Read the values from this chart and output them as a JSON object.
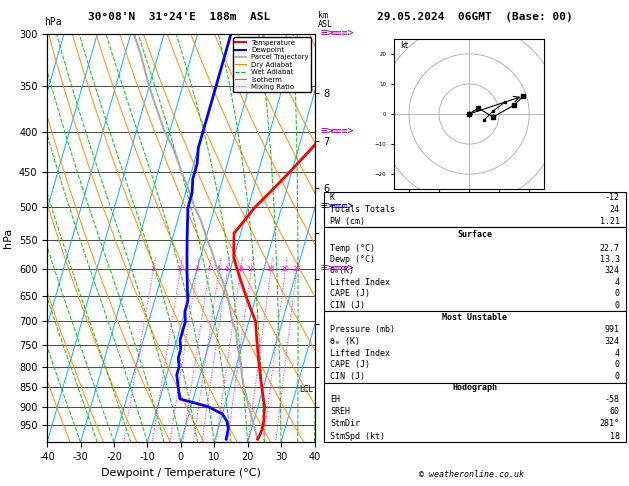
{
  "title_left": "30°08'N  31°24'E  188m  ASL",
  "title_right": "29.05.2024  06GMT  (Base: 00)",
  "xlabel": "Dewpoint / Temperature (°C)",
  "ylabel_left": "hPa",
  "pressure_ticks": [
    300,
    350,
    400,
    450,
    500,
    550,
    600,
    650,
    700,
    750,
    800,
    850,
    900,
    950
  ],
  "T_min": -40,
  "T_max": 40,
  "P_min": 300,
  "P_max": 1000,
  "skew_factor": 35,
  "temperature_profile": {
    "pressures": [
      991,
      980,
      960,
      940,
      920,
      900,
      880,
      860,
      840,
      820,
      800,
      780,
      760,
      740,
      720,
      700,
      680,
      660,
      640,
      620,
      600,
      580,
      560,
      540,
      520,
      500,
      480,
      460,
      440,
      420,
      400,
      380,
      360,
      340,
      320,
      300
    ],
    "temps": [
      22.7,
      23.0,
      23.2,
      23.0,
      22.5,
      22.0,
      21.0,
      20.0,
      19.0,
      18.0,
      17.0,
      16.0,
      15.0,
      14.0,
      13.0,
      12.0,
      10.0,
      8.0,
      6.0,
      4.0,
      2.0,
      0.0,
      -1.0,
      -2.0,
      0.0,
      2.0,
      5.0,
      8.0,
      11.0,
      14.0,
      17.0,
      21.0,
      24.0,
      27.0,
      29.0,
      30.0
    ],
    "color": "#ff0000",
    "linewidth": 2.0
  },
  "dewpoint_profile": {
    "pressures": [
      991,
      980,
      960,
      940,
      920,
      900,
      880,
      860,
      840,
      820,
      800,
      780,
      760,
      740,
      720,
      700,
      680,
      660,
      640,
      620,
      600,
      580,
      560,
      540,
      520,
      500,
      480,
      460,
      440,
      420,
      400,
      380,
      360,
      340,
      320,
      300
    ],
    "temps": [
      13.3,
      13.2,
      13.0,
      12.0,
      10.0,
      5.0,
      -4.0,
      -5.0,
      -6.0,
      -7.0,
      -7.0,
      -8.0,
      -8.0,
      -9.0,
      -9.0,
      -9.0,
      -10.0,
      -10.0,
      -11.0,
      -12.0,
      -13.0,
      -14.0,
      -15.0,
      -16.0,
      -17.0,
      -18.0,
      -18.0,
      -19.0,
      -19.0,
      -20.0,
      -20.0,
      -20.0,
      -20.0,
      -20.0,
      -20.0,
      -20.0
    ],
    "color": "#0000ff",
    "linewidth": 2.0
  },
  "parcel_trajectory": {
    "pressures": [
      991,
      970,
      950,
      920,
      900,
      870,
      855,
      830,
      800,
      770,
      750,
      720,
      700,
      670,
      650,
      620,
      600,
      570,
      550,
      520,
      500,
      470,
      450,
      420,
      400,
      370,
      350,
      320,
      300
    ],
    "temps": [
      22.7,
      21.5,
      20.3,
      18.5,
      17.2,
      15.5,
      14.5,
      13.0,
      11.5,
      9.8,
      8.5,
      7.0,
      5.0,
      3.0,
      1.5,
      -1.5,
      -4.0,
      -7.0,
      -9.5,
      -13.0,
      -16.0,
      -20.0,
      -23.0,
      -27.5,
      -31.5,
      -36.5,
      -40.0,
      -45.0,
      -49.0
    ],
    "color": "#aaaaaa",
    "linewidth": 1.5
  },
  "isotherms_step": 10,
  "iso_color": "#00aaff",
  "iso_lw": 0.8,
  "dry_adiabat_color": "#ff8800",
  "dry_adiabat_lw": 0.8,
  "dry_adiabat_thetas": [
    240,
    250,
    260,
    270,
    280,
    290,
    300,
    310,
    320,
    330,
    340,
    350,
    360,
    370,
    380,
    390,
    400,
    410,
    420
  ],
  "wet_adiabat_color": "#00bb00",
  "wet_adiabat_lw": 0.8,
  "wet_adiabat_ls": "--",
  "wet_adiabat_starts": [
    -30,
    -25,
    -20,
    -15,
    -10,
    -5,
    0,
    5,
    10,
    15,
    20,
    25,
    30,
    35,
    40
  ],
  "mr_color": "#ff00ff",
  "mr_lw": 0.7,
  "mr_ls": ":",
  "mr_values": [
    1,
    2,
    3,
    4,
    5,
    6,
    8,
    10,
    15,
    20,
    25
  ],
  "km_values": [
    1,
    2,
    3,
    4,
    5,
    6,
    7,
    8
  ],
  "km_pressures": [
    900,
    802,
    705,
    617,
    540,
    472,
    411,
    357
  ],
  "lcl_pressure": 855,
  "wind_barb_pressures": [
    300,
    400,
    500,
    600
  ],
  "wind_barb_colors": [
    "#aa00aa",
    "#aa00aa",
    "#0000aa",
    "#aa00aa"
  ],
  "legend_entries": [
    {
      "label": "Temperature",
      "color": "#ff0000",
      "lw": 1.5,
      "ls": "-"
    },
    {
      "label": "Dewpoint",
      "color": "#0000ff",
      "lw": 1.5,
      "ls": "-"
    },
    {
      "label": "Parcel Trajectory",
      "color": "#aaaaaa",
      "lw": 1.2,
      "ls": "-"
    },
    {
      "label": "Dry Adiabat",
      "color": "#ff8800",
      "lw": 0.8,
      "ls": "-"
    },
    {
      "label": "Wet Adiabat",
      "color": "#00bb00",
      "lw": 0.8,
      "ls": "--"
    },
    {
      "label": "Isotherm",
      "color": "#00aaff",
      "lw": 0.8,
      "ls": "-"
    },
    {
      "label": "Mixing Ratio",
      "color": "#ff00ff",
      "lw": 0.8,
      "ls": ":"
    }
  ],
  "stats_K": "-12",
  "stats_TT": "24",
  "stats_PW": "1.21",
  "surf_temp": "22.7",
  "surf_dewp": "13.3",
  "surf_theta": "324",
  "surf_li": "4",
  "surf_cape": "0",
  "surf_cin": "0",
  "mu_pres": "991",
  "mu_theta": "324",
  "mu_li": "4",
  "mu_cape": "0",
  "mu_cin": "0",
  "hodo_EH": "-58",
  "hodo_SREH": "60",
  "hodo_StmDir": "281°",
  "hodo_StmSpd": "18",
  "copyright": "© weatheronline.co.uk",
  "hodograph_circles": [
    10,
    20,
    30
  ],
  "hodograph_points_x": [
    0,
    3,
    8,
    15,
    18
  ],
  "hodograph_points_y": [
    0,
    2,
    -1,
    3,
    6
  ]
}
